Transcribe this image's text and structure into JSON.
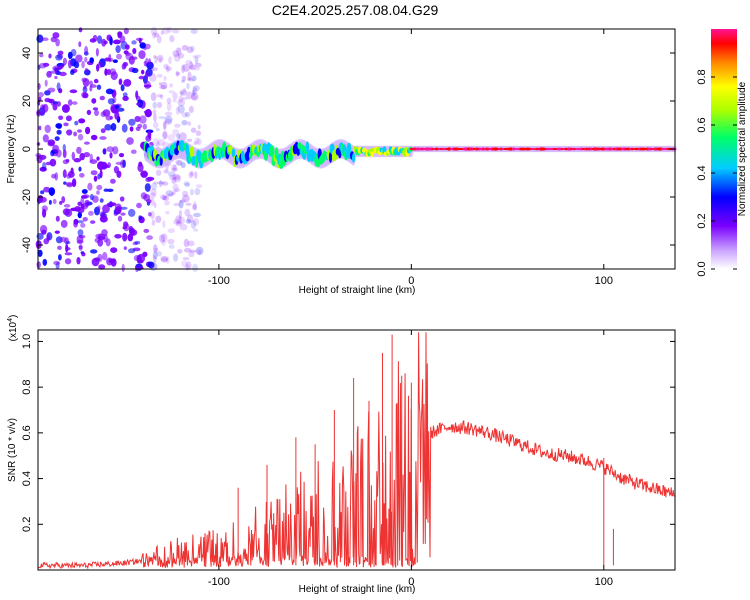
{
  "title": "C2E4.2025.257.08.04.G29",
  "chart_data": [
    {
      "type": "heatmap",
      "title": "C2E4.2025.257.08.04.G29",
      "xlabel": "Height of straight line (km)",
      "ylabel": "Frequency (Hz)",
      "xlim": [
        -194,
        137
      ],
      "ylim": [
        -50,
        50
      ],
      "x_ticks": [
        -100,
        0,
        100
      ],
      "x_tick_labels": [
        "-100",
        "0",
        "100"
      ],
      "y_ticks": [
        -40,
        -20,
        0,
        20,
        40
      ],
      "y_tick_labels": [
        "-40",
        "-20",
        "0",
        "20",
        "40"
      ],
      "colorbar": {
        "label": "Normalized spectral amplitude",
        "range": [
          0,
          1
        ],
        "ticks": [
          0.0,
          0.2,
          0.4,
          0.6,
          0.8
        ],
        "tick_labels": [
          "0.0",
          "0.2",
          "0.4",
          "0.6",
          "0.8"
        ]
      },
      "description_points": {
        "noise_region_x": [
          -194,
          -135
        ],
        "signal_band_center_hz": 0,
        "signal_band_start_x": -138
      }
    },
    {
      "type": "line",
      "xlabel": "Height of straight line (km)",
      "ylabel": "SNR (10 * v/v)",
      "y_multiplier_label": "(x10",
      "y_multiplier_exp": "4",
      "y_multiplier_close": ")",
      "xlim": [
        -194,
        137
      ],
      "ylim": [
        0,
        1.05
      ],
      "x_ticks": [
        -100,
        0,
        100
      ],
      "x_tick_labels": [
        "-100",
        "0",
        "100"
      ],
      "y_ticks": [
        0.2,
        0.4,
        0.6,
        0.8,
        1.0
      ],
      "y_tick_labels": [
        "0.2",
        "0.4",
        "0.6",
        "0.8",
        "1.0"
      ],
      "color": "#ee3333",
      "series": [
        {
          "name": "SNR",
          "x": [
            -194,
            -170,
            -150,
            -140,
            -130,
            -120,
            -110,
            -100,
            -90,
            -80,
            -70,
            -60,
            -50,
            -40,
            -30,
            -20,
            -10,
            0,
            10,
            20,
            30,
            40,
            50,
            60,
            70,
            80,
            90,
            100,
            110,
            120,
            137
          ],
          "y": [
            0.02,
            0.02,
            0.03,
            0.04,
            0.06,
            0.08,
            0.09,
            0.1,
            0.12,
            0.15,
            0.18,
            0.22,
            0.26,
            0.3,
            0.33,
            0.38,
            0.45,
            0.55,
            0.6,
            0.63,
            0.62,
            0.6,
            0.57,
            0.54,
            0.51,
            0.5,
            0.48,
            0.45,
            0.4,
            0.37,
            0.33
          ]
        }
      ],
      "spikes": [
        {
          "x": -90,
          "y": 0.36
        },
        {
          "x": -75,
          "y": 0.46
        },
        {
          "x": -60,
          "y": 0.58
        },
        {
          "x": -50,
          "y": 0.55
        },
        {
          "x": -40,
          "y": 0.7
        },
        {
          "x": -30,
          "y": 0.84
        },
        {
          "x": -22,
          "y": 0.74
        },
        {
          "x": -15,
          "y": 0.95
        },
        {
          "x": -10,
          "y": 1.03
        },
        {
          "x": -5,
          "y": 0.85
        },
        {
          "x": 0,
          "y": 0.82
        },
        {
          "x": 100,
          "y": 0.49
        },
        {
          "x": 105,
          "y": 0.18
        }
      ]
    }
  ]
}
